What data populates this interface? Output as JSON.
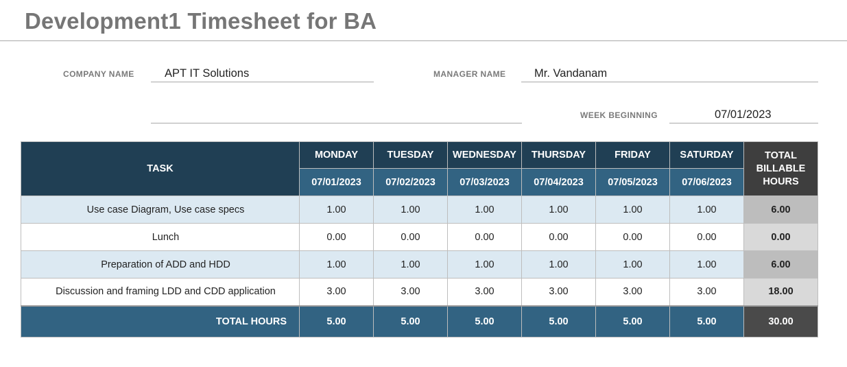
{
  "title": "Development1 Timesheet for BA",
  "header": {
    "company_label": "COMPANY NAME",
    "company_value": "APT IT Solutions",
    "manager_label": "MANAGER NAME",
    "manager_value": "Mr. Vandanam",
    "week_label": "WEEK BEGINNING",
    "week_value": "07/01/2023"
  },
  "table": {
    "task_header": "TASK",
    "days": [
      {
        "name": "MONDAY",
        "date": "07/01/2023"
      },
      {
        "name": "TUESDAY",
        "date": "07/02/2023"
      },
      {
        "name": "WEDNESDAY",
        "date": "07/03/2023"
      },
      {
        "name": "THURSDAY",
        "date": "07/04/2023"
      },
      {
        "name": "FRIDAY",
        "date": "07/05/2023"
      },
      {
        "name": "SATURDAY",
        "date": "07/06/2023"
      }
    ],
    "total_header": "TOTAL BILLABLE HOURS",
    "rows": [
      {
        "task": "Use case Diagram, Use case specs",
        "hours": [
          "1.00",
          "1.00",
          "1.00",
          "1.00",
          "1.00",
          "1.00"
        ],
        "total": "6.00"
      },
      {
        "task": "Lunch",
        "hours": [
          "0.00",
          "0.00",
          "0.00",
          "0.00",
          "0.00",
          "0.00"
        ],
        "total": "0.00"
      },
      {
        "task": "Preparation of ADD and HDD",
        "hours": [
          "1.00",
          "1.00",
          "1.00",
          "1.00",
          "1.00",
          "1.00"
        ],
        "total": "6.00"
      },
      {
        "task": "Discussion and framing LDD and CDD application",
        "hours": [
          "3.00",
          "3.00",
          "3.00",
          "3.00",
          "3.00",
          "3.00"
        ],
        "total": "18.00"
      }
    ],
    "totals_label": "TOTAL HOURS",
    "day_totals": [
      "5.00",
      "5.00",
      "5.00",
      "5.00",
      "5.00",
      "5.00"
    ],
    "grand_total": "30.00"
  }
}
